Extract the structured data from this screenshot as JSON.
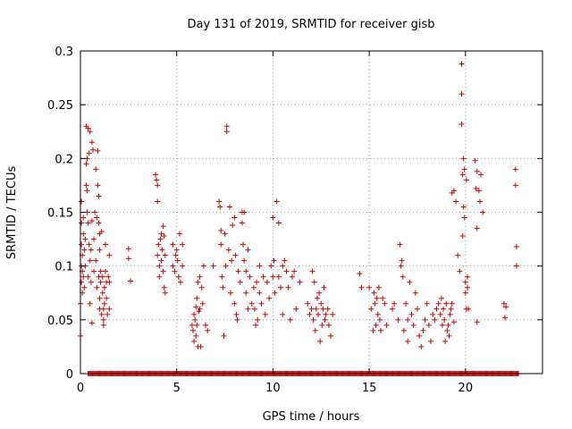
{
  "chart_data": {
    "type": "scatter",
    "title": "Day 131 of 2019, SRMTID for receiver gisb",
    "xlabel": "GPS time / hours",
    "ylabel": "SRMTID / TECUs",
    "xlim": [
      0,
      24
    ],
    "ylim": [
      0,
      0.3
    ],
    "xticks": [
      "0",
      "5",
      "10",
      "15",
      "20"
    ],
    "xtick_values": [
      0,
      5,
      10,
      15,
      20
    ],
    "yticks": [
      "0",
      "0.05",
      "0.1",
      "0.15",
      "0.2",
      "0.25",
      "0.3"
    ],
    "ytick_values": [
      0,
      0.05,
      0.1,
      0.15,
      0.2,
      0.25,
      0.3
    ],
    "grid": true,
    "marker": "plus",
    "color": "#cc0000",
    "zero_band": [
      0.4,
      22.8
    ],
    "points": [
      [
        0.0,
        0.035
      ],
      [
        0.0,
        0.065
      ],
      [
        0.05,
        0.16
      ],
      [
        0.05,
        0.14
      ],
      [
        0.05,
        0.12
      ],
      [
        0.05,
        0.1
      ],
      [
        0.05,
        0.085
      ],
      [
        0.1,
        0.075
      ],
      [
        0.1,
        0.095
      ],
      [
        0.1,
        0.11
      ],
      [
        0.15,
        0.13
      ],
      [
        0.15,
        0.145
      ],
      [
        0.15,
        0.09
      ],
      [
        0.2,
        0.08
      ],
      [
        0.2,
        0.115
      ],
      [
        0.25,
        0.1
      ],
      [
        0.25,
        0.125
      ],
      [
        0.3,
        0.175
      ],
      [
        0.3,
        0.195
      ],
      [
        0.3,
        0.23
      ],
      [
        0.35,
        0.2
      ],
      [
        0.35,
        0.17
      ],
      [
        0.35,
        0.15
      ],
      [
        0.4,
        0.228
      ],
      [
        0.4,
        0.14
      ],
      [
        0.4,
        0.09
      ],
      [
        0.45,
        0.205
      ],
      [
        0.45,
        0.12
      ],
      [
        0.5,
        0.225
      ],
      [
        0.5,
        0.105
      ],
      [
        0.5,
        0.065
      ],
      [
        0.55,
        0.115
      ],
      [
        0.55,
        0.085
      ],
      [
        0.6,
        0.215
      ],
      [
        0.6,
        0.142
      ],
      [
        0.6,
        0.047
      ],
      [
        0.65,
        0.208
      ],
      [
        0.7,
        0.095
      ],
      [
        0.7,
        0.125
      ],
      [
        0.75,
        0.15
      ],
      [
        0.8,
        0.19
      ],
      [
        0.8,
        0.105
      ],
      [
        0.85,
        0.145
      ],
      [
        0.85,
        0.08
      ],
      [
        0.9,
        0.207
      ],
      [
        0.9,
        0.175
      ],
      [
        0.95,
        0.165
      ],
      [
        0.95,
        0.14
      ],
      [
        0.95,
        0.09
      ],
      [
        1.0,
        0.13
      ],
      [
        1.0,
        0.115
      ],
      [
        1.0,
        0.07
      ],
      [
        1.0,
        0.06
      ],
      [
        1.05,
        0.095
      ],
      [
        1.05,
        0.085
      ],
      [
        1.1,
        0.132
      ],
      [
        1.1,
        0.055
      ],
      [
        1.15,
        0.09
      ],
      [
        1.15,
        0.075
      ],
      [
        1.2,
        0.06
      ],
      [
        1.2,
        0.045
      ],
      [
        1.2,
        0.05
      ],
      [
        1.25,
        0.08
      ],
      [
        1.25,
        0.065
      ],
      [
        1.3,
        0.12
      ],
      [
        1.3,
        0.095
      ],
      [
        1.35,
        0.085
      ],
      [
        1.35,
        0.07
      ],
      [
        1.4,
        0.055
      ],
      [
        1.45,
        0.09
      ],
      [
        1.5,
        0.085
      ],
      [
        1.5,
        0.06
      ],
      [
        1.5,
        0.11
      ],
      [
        2.5,
        0.116
      ],
      [
        2.5,
        0.107
      ],
      [
        2.6,
        0.086
      ],
      [
        3.9,
        0.185
      ],
      [
        3.95,
        0.18
      ],
      [
        4.0,
        0.175
      ],
      [
        4.0,
        0.16
      ],
      [
        4.0,
        0.11
      ],
      [
        4.05,
        0.12
      ],
      [
        4.1,
        0.09
      ],
      [
        4.1,
        0.1
      ],
      [
        4.15,
        0.125
      ],
      [
        4.2,
        0.13
      ],
      [
        4.2,
        0.105
      ],
      [
        4.25,
        0.115
      ],
      [
        4.3,
        0.137
      ],
      [
        4.3,
        0.095
      ],
      [
        4.35,
        0.128
      ],
      [
        4.35,
        0.08
      ],
      [
        4.4,
        0.075
      ],
      [
        4.4,
        0.11
      ],
      [
        4.8,
        0.12
      ],
      [
        4.8,
        0.1
      ],
      [
        4.9,
        0.095
      ],
      [
        4.95,
        0.11
      ],
      [
        5.0,
        0.115
      ],
      [
        5.05,
        0.105
      ],
      [
        5.1,
        0.09
      ],
      [
        5.15,
        0.13
      ],
      [
        5.2,
        0.085
      ],
      [
        5.3,
        0.12
      ],
      [
        5.3,
        0.1
      ],
      [
        5.8,
        0.045
      ],
      [
        5.85,
        0.04
      ],
      [
        5.9,
        0.055
      ],
      [
        5.9,
        0.03
      ],
      [
        5.95,
        0.05
      ],
      [
        6.0,
        0.062
      ],
      [
        6.0,
        0.035
      ],
      [
        6.05,
        0.07
      ],
      [
        6.05,
        0.045
      ],
      [
        6.1,
        0.085
      ],
      [
        6.1,
        0.025
      ],
      [
        6.15,
        0.058
      ],
      [
        6.2,
        0.06
      ],
      [
        6.2,
        0.09
      ],
      [
        6.25,
        0.025
      ],
      [
        6.3,
        0.08
      ],
      [
        6.35,
        0.065
      ],
      [
        6.4,
        0.1
      ],
      [
        6.5,
        0.045
      ],
      [
        6.6,
        0.04
      ],
      [
        6.9,
        0.1
      ],
      [
        7.2,
        0.16
      ],
      [
        7.25,
        0.155
      ],
      [
        7.3,
        0.133
      ],
      [
        7.3,
        0.12
      ],
      [
        7.35,
        0.09
      ],
      [
        7.4,
        0.08
      ],
      [
        7.45,
        0.035
      ],
      [
        7.5,
        0.13
      ],
      [
        7.55,
        0.1
      ],
      [
        7.6,
        0.23
      ],
      [
        7.6,
        0.225
      ],
      [
        7.7,
        0.115
      ],
      [
        7.75,
        0.155
      ],
      [
        7.8,
        0.075
      ],
      [
        7.85,
        0.105
      ],
      [
        7.9,
        0.138
      ],
      [
        8.0,
        0.145
      ],
      [
        8.0,
        0.065
      ],
      [
        8.05,
        0.11
      ],
      [
        8.1,
        0.055
      ],
      [
        8.15,
        0.05
      ],
      [
        8.2,
        0.095
      ],
      [
        8.3,
        0.085
      ],
      [
        8.4,
        0.15
      ],
      [
        8.4,
        0.14
      ],
      [
        8.45,
        0.12
      ],
      [
        8.5,
        0.15
      ],
      [
        8.5,
        0.105
      ],
      [
        8.6,
        0.095
      ],
      [
        8.6,
        0.075
      ],
      [
        8.7,
        0.06
      ],
      [
        8.7,
        0.115
      ],
      [
        8.8,
        0.09
      ],
      [
        8.9,
        0.065
      ],
      [
        9.0,
        0.08
      ],
      [
        9.05,
        0.06
      ],
      [
        9.1,
        0.045
      ],
      [
        9.15,
        0.085
      ],
      [
        9.2,
        0.05
      ],
      [
        9.3,
        0.1
      ],
      [
        9.3,
        0.075
      ],
      [
        9.4,
        0.065
      ],
      [
        9.5,
        0.09
      ],
      [
        9.6,
        0.055
      ],
      [
        9.7,
        0.085
      ],
      [
        9.8,
        0.07
      ],
      [
        9.9,
        0.1
      ],
      [
        10.0,
        0.145
      ],
      [
        10.0,
        0.09
      ],
      [
        10.05,
        0.105
      ],
      [
        10.1,
        0.075
      ],
      [
        10.2,
        0.16
      ],
      [
        10.3,
        0.09
      ],
      [
        10.3,
        0.14
      ],
      [
        10.4,
        0.08
      ],
      [
        10.5,
        0.1
      ],
      [
        10.5,
        0.055
      ],
      [
        10.6,
        0.105
      ],
      [
        10.7,
        0.095
      ],
      [
        10.8,
        0.08
      ],
      [
        10.9,
        0.05
      ],
      [
        11.0,
        0.09
      ],
      [
        11.1,
        0.095
      ],
      [
        11.2,
        0.06
      ],
      [
        11.4,
        0.085
      ],
      [
        11.8,
        0.065
      ],
      [
        11.9,
        0.055
      ],
      [
        12.0,
        0.06
      ],
      [
        12.05,
        0.095
      ],
      [
        12.1,
        0.05
      ],
      [
        12.15,
        0.085
      ],
      [
        12.2,
        0.04
      ],
      [
        12.25,
        0.06
      ],
      [
        12.3,
        0.07
      ],
      [
        12.35,
        0.055
      ],
      [
        12.4,
        0.075
      ],
      [
        12.45,
        0.03
      ],
      [
        12.5,
        0.065
      ],
      [
        12.55,
        0.045
      ],
      [
        12.6,
        0.06
      ],
      [
        12.65,
        0.08
      ],
      [
        12.7,
        0.05
      ],
      [
        12.75,
        0.055
      ],
      [
        12.85,
        0.06
      ],
      [
        12.9,
        0.045
      ],
      [
        13.0,
        0.035
      ],
      [
        13.1,
        0.055
      ],
      [
        14.5,
        0.093
      ],
      [
        14.6,
        0.08
      ],
      [
        15.0,
        0.08
      ],
      [
        15.1,
        0.06
      ],
      [
        15.2,
        0.04
      ],
      [
        15.25,
        0.075
      ],
      [
        15.3,
        0.065
      ],
      [
        15.35,
        0.045
      ],
      [
        15.4,
        0.07
      ],
      [
        15.45,
        0.055
      ],
      [
        15.5,
        0.08
      ],
      [
        15.55,
        0.05
      ],
      [
        15.6,
        0.04
      ],
      [
        15.7,
        0.07
      ],
      [
        15.8,
        0.065
      ],
      [
        15.9,
        0.045
      ],
      [
        16.2,
        0.06
      ],
      [
        16.3,
        0.065
      ],
      [
        16.5,
        0.05
      ],
      [
        16.6,
        0.12
      ],
      [
        16.65,
        0.1
      ],
      [
        16.7,
        0.105
      ],
      [
        16.75,
        0.09
      ],
      [
        16.8,
        0.04
      ],
      [
        16.9,
        0.065
      ],
      [
        17.0,
        0.05
      ],
      [
        17.0,
        0.03
      ],
      [
        17.1,
        0.085
      ],
      [
        17.2,
        0.055
      ],
      [
        17.3,
        0.045
      ],
      [
        17.4,
        0.075
      ],
      [
        17.5,
        0.06
      ],
      [
        17.6,
        0.035
      ],
      [
        17.7,
        0.025
      ],
      [
        17.8,
        0.04
      ],
      [
        17.9,
        0.05
      ],
      [
        18.0,
        0.065
      ],
      [
        18.1,
        0.045
      ],
      [
        18.2,
        0.03
      ],
      [
        18.3,
        0.055
      ],
      [
        18.4,
        0.05
      ],
      [
        18.5,
        0.06
      ],
      [
        18.6,
        0.065
      ],
      [
        18.7,
        0.055
      ],
      [
        18.75,
        0.07
      ],
      [
        18.8,
        0.045
      ],
      [
        18.85,
        0.06
      ],
      [
        18.9,
        0.05
      ],
      [
        18.95,
        0.03
      ],
      [
        19.0,
        0.065
      ],
      [
        19.05,
        0.04
      ],
      [
        19.1,
        0.045
      ],
      [
        19.15,
        0.035
      ],
      [
        19.2,
        0.055
      ],
      [
        19.25,
        0.06
      ],
      [
        19.3,
        0.065
      ],
      [
        19.4,
        0.048
      ],
      [
        19.3,
        0.168
      ],
      [
        19.4,
        0.17
      ],
      [
        19.5,
        0.16
      ],
      [
        19.6,
        0.11
      ],
      [
        19.7,
        0.095
      ],
      [
        19.8,
        0.288
      ],
      [
        19.8,
        0.26
      ],
      [
        19.8,
        0.232
      ],
      [
        19.85,
        0.128
      ],
      [
        19.85,
        0.185
      ],
      [
        19.9,
        0.2
      ],
      [
        19.9,
        0.155
      ],
      [
        19.95,
        0.19
      ],
      [
        19.95,
        0.145
      ],
      [
        20.0,
        0.085
      ],
      [
        20.0,
        0.075
      ],
      [
        20.05,
        0.18
      ],
      [
        20.05,
        0.06
      ],
      [
        20.1,
        0.09
      ],
      [
        20.1,
        0.08
      ],
      [
        20.15,
        0.06
      ],
      [
        20.5,
        0.198
      ],
      [
        20.55,
        0.172
      ],
      [
        20.6,
        0.188
      ],
      [
        20.6,
        0.135
      ],
      [
        20.6,
        0.048
      ],
      [
        20.7,
        0.17
      ],
      [
        20.75,
        0.16
      ],
      [
        20.8,
        0.185
      ],
      [
        20.9,
        0.15
      ],
      [
        22.0,
        0.065
      ],
      [
        22.05,
        0.052
      ],
      [
        22.1,
        0.062
      ],
      [
        22.6,
        0.19
      ],
      [
        22.6,
        0.175
      ],
      [
        22.65,
        0.118
      ],
      [
        22.65,
        0.1
      ]
    ]
  }
}
